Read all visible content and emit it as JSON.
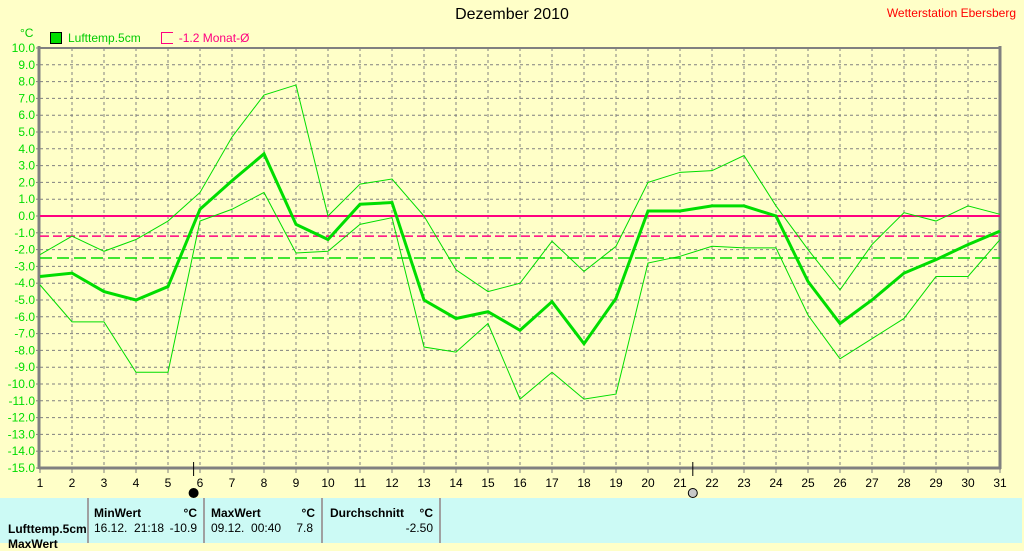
{
  "header": {
    "title": "Dezember 2010",
    "station": "Wetterstation Ebersberg",
    "unit": "°C"
  },
  "legend": [
    {
      "label": "Lufttemp.5cm",
      "color": "#00dd00"
    },
    {
      "label": "-1.2 Monat-Ø",
      "color": "#ff0080"
    }
  ],
  "stats": {
    "row_label": "Lufttemp.5cm",
    "row2_label": "MaxWert",
    "min": {
      "header": "MinWert",
      "unit": "°C",
      "datetime": "16.12.  21:18",
      "value": "-10.9"
    },
    "max": {
      "header": "MaxWert",
      "unit": "°C",
      "datetime": "09.12.  00:40",
      "value": "7.8"
    },
    "avg": {
      "header": "Durchschnitt",
      "unit": "°C",
      "value": "-2.50"
    }
  },
  "chart_data": {
    "type": "line",
    "title": "Dezember 2010",
    "ylabel": "°C",
    "ylim": [
      -15,
      10
    ],
    "xlim": [
      1,
      31
    ],
    "x": [
      1,
      2,
      3,
      4,
      5,
      6,
      7,
      8,
      9,
      10,
      11,
      12,
      13,
      14,
      15,
      16,
      17,
      18,
      19,
      20,
      21,
      22,
      23,
      24,
      25,
      26,
      27,
      28,
      29,
      30,
      31
    ],
    "yticks": [
      "10.0",
      "9.0",
      "8.0",
      "7.0",
      "6.0",
      "5.0",
      "4.0",
      "3.0",
      "2.0",
      "1.0",
      "0.0",
      "-1.0",
      "-2.0",
      "-3.0",
      "-4.0",
      "-5.0",
      "-6.0",
      "-7.0",
      "-8.0",
      "-9.0",
      "-10.0",
      "-11.0",
      "-12.0",
      "-13.0",
      "-14.0",
      "-15.0"
    ],
    "xticks": [
      "1",
      "2",
      "3",
      "4",
      "5",
      "6",
      "7",
      "8",
      "9",
      "10",
      "11",
      "12",
      "13",
      "14",
      "15",
      "16",
      "17",
      "18",
      "19",
      "20",
      "21",
      "22",
      "23",
      "24",
      "25",
      "26",
      "27",
      "28",
      "29",
      "30",
      "31"
    ],
    "series": [
      {
        "name": "Lufttemp.5cm Mittel",
        "color": "#00dd00",
        "values": [
          -3.6,
          -3.4,
          -4.5,
          -5.0,
          -4.2,
          0.4,
          2.1,
          3.7,
          -0.5,
          -1.4,
          0.7,
          0.8,
          -5.0,
          -6.1,
          -5.7,
          -6.8,
          -5.1,
          -7.6,
          -4.9,
          0.3,
          0.3,
          0.6,
          0.6,
          0.0,
          -3.9,
          -6.4,
          -5.0,
          -3.4,
          -2.6,
          -1.7,
          -0.9
        ]
      },
      {
        "name": "Lufttemp.5cm Max",
        "color": "#00dd00",
        "values": [
          -2.3,
          -1.2,
          -2.1,
          -1.4,
          -0.3,
          1.4,
          4.7,
          7.2,
          7.8,
          0.0,
          1.9,
          2.2,
          0.0,
          -3.2,
          -4.5,
          -4.0,
          -1.5,
          -3.3,
          -1.8,
          2.0,
          2.6,
          2.7,
          3.6,
          0.6,
          -2.0,
          -4.4,
          -1.7,
          0.2,
          -0.3,
          0.6,
          0.1
        ]
      },
      {
        "name": "Lufttemp.5cm Min",
        "color": "#00dd00",
        "values": [
          -4.1,
          -6.3,
          -6.3,
          -9.3,
          -9.3,
          -0.3,
          0.4,
          1.4,
          -2.2,
          -2.1,
          -0.5,
          -0.1,
          -7.8,
          -8.1,
          -6.4,
          -10.9,
          -9.3,
          -10.9,
          -10.6,
          -2.8,
          -2.4,
          -1.8,
          -1.9,
          -1.9,
          -5.9,
          -8.5,
          -7.3,
          -6.1,
          -3.6,
          -3.6,
          -1.4
        ]
      }
    ],
    "reference_lines": [
      {
        "name": "zero",
        "value": 0.0,
        "color": "#ff0080",
        "style": "solid"
      },
      {
        "name": "Monat-Ø",
        "value": -1.2,
        "color": "#ff0080",
        "style": "dashed"
      },
      {
        "name": "Durchschnitt",
        "value": -2.5,
        "color": "#00dd00",
        "style": "dashed"
      }
    ],
    "markers": [
      {
        "name": "new-moon",
        "day": 5.8,
        "fill": "#000000"
      },
      {
        "name": "full-moon",
        "day": 21.4,
        "fill": "#c8c8c8"
      }
    ],
    "grid": true,
    "legend_position": "top-left"
  }
}
